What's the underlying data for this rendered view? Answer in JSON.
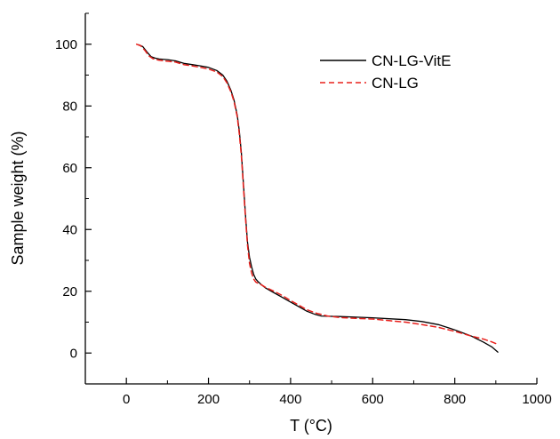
{
  "chart_data": {
    "type": "line",
    "xlabel": "T (°C)",
    "ylabel": "Sample weight (%)",
    "xlim": [
      -100,
      1000
    ],
    "ylim": [
      -10,
      110
    ],
    "xticks": [
      0,
      200,
      400,
      600,
      800,
      1000
    ],
    "yticks": [
      0,
      20,
      40,
      60,
      80,
      100
    ],
    "grid": false,
    "legend_position": "top-right",
    "series": [
      {
        "name": "CN-LG-VitE",
        "color": "#000000",
        "dash": "solid",
        "x": [
          30,
          40,
          50,
          60,
          70,
          80,
          100,
          120,
          140,
          160,
          180,
          200,
          220,
          235,
          245,
          255,
          262,
          270,
          275,
          280,
          285,
          290,
          295,
          300,
          305,
          310,
          315,
          320,
          330,
          340,
          360,
          380,
          400,
          420,
          440,
          460,
          475,
          490,
          520,
          560,
          600,
          640,
          680,
          720,
          760,
          800,
          840,
          870,
          890,
          905
        ],
        "y": [
          99.8,
          99.2,
          97.5,
          96,
          95.5,
          95.2,
          95,
          94.6,
          93.8,
          93.4,
          93,
          92.5,
          91.5,
          90,
          88,
          85,
          82,
          77,
          72,
          65,
          55,
          45,
          36,
          31,
          28,
          25.5,
          24,
          23.2,
          22,
          21,
          19.5,
          18,
          16.5,
          15,
          13.5,
          12.5,
          12,
          11.9,
          11.8,
          11.6,
          11.4,
          11.1,
          10.8,
          10.2,
          9.2,
          7.5,
          5.5,
          3.5,
          2,
          0.3
        ]
      },
      {
        "name": "CN-LG",
        "color": "#e8201c",
        "dash": "dashed",
        "x": [
          25,
          35,
          45,
          55,
          65,
          80,
          100,
          120,
          140,
          160,
          180,
          200,
          220,
          235,
          245,
          255,
          262,
          270,
          275,
          280,
          285,
          290,
          295,
          300,
          305,
          310,
          315,
          320,
          330,
          340,
          360,
          380,
          400,
          420,
          440,
          460,
          475,
          490,
          520,
          560,
          600,
          640,
          680,
          720,
          760,
          800,
          840,
          870,
          890,
          905
        ],
        "y": [
          100,
          99.5,
          98,
          96.2,
          95.3,
          94.8,
          94.5,
          94.2,
          93.4,
          93,
          92.5,
          92,
          91,
          89.5,
          87.5,
          84.5,
          81.5,
          76.5,
          71,
          64,
          54,
          44,
          35,
          29,
          26,
          24,
          23,
          22.6,
          22,
          21.2,
          20,
          18.6,
          17,
          15.5,
          14,
          13,
          12.5,
          12,
          11.5,
          11.2,
          11,
          10.5,
          10,
          9.2,
          8.3,
          7,
          5.5,
          4.5,
          3.6,
          2.8
        ]
      }
    ]
  }
}
